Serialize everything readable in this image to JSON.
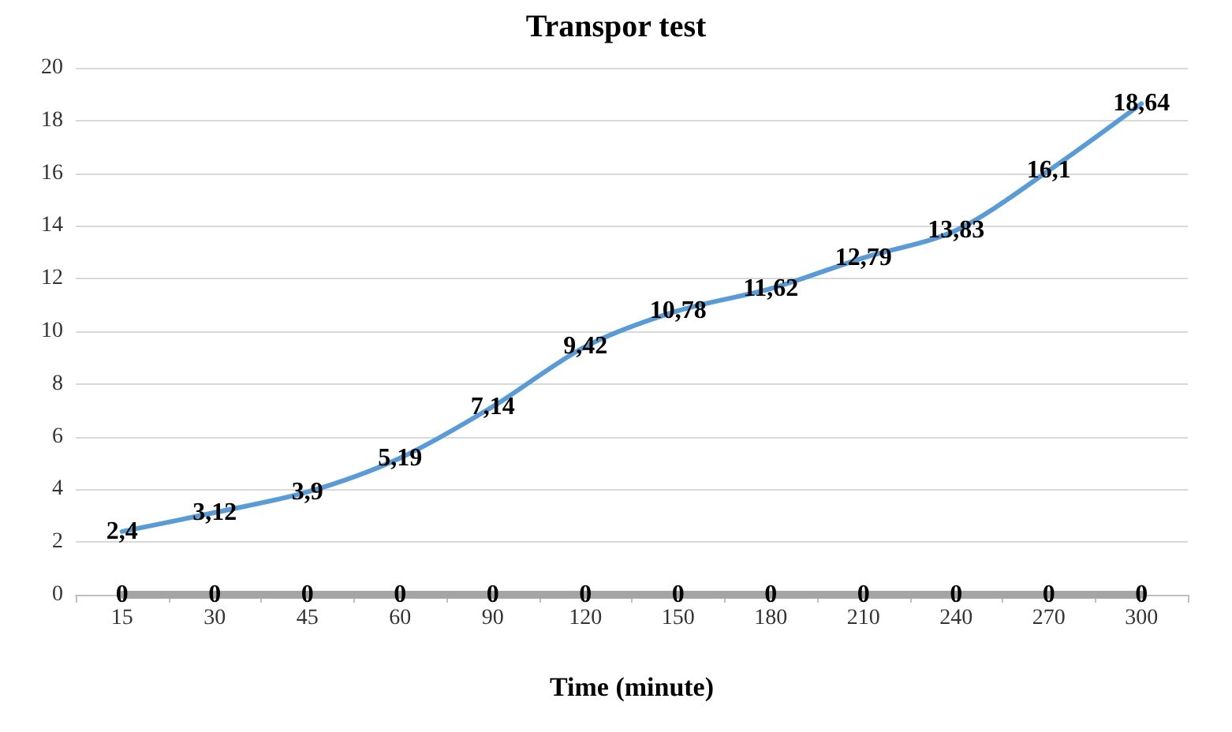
{
  "chart_data": {
    "type": "line",
    "title": "Transpor test",
    "xlabel": "Time (minute)",
    "categories": [
      "15",
      "30",
      "45",
      "60",
      "90",
      "120",
      "150",
      "180",
      "210",
      "240",
      "270",
      "300"
    ],
    "series": [
      {
        "color": "#5b9bd5",
        "values": [
          2.4,
          3.12,
          3.9,
          5.19,
          7.14,
          9.42,
          10.78,
          11.62,
          12.79,
          13.83,
          16.1,
          18.64
        ],
        "value_labels": [
          "2,4",
          "3,12",
          "3,9",
          "5,19",
          "7,14",
          "9,42",
          "10,78",
          "11,62",
          "12,79",
          "13,83",
          "16,1",
          "18,64"
        ]
      },
      {
        "color": "#a5a5a5",
        "values": [
          0,
          0,
          0,
          0,
          0,
          0,
          0,
          0,
          0,
          0,
          0,
          0
        ],
        "value_labels": [
          "0",
          "0",
          "0",
          "0",
          "0",
          "0",
          "0",
          "0",
          "0",
          "0",
          "0",
          "0"
        ]
      }
    ],
    "ylim": [
      0,
      20
    ],
    "yticks": [
      0,
      2,
      4,
      6,
      8,
      10,
      12,
      14,
      16,
      18,
      20
    ],
    "grid": "y",
    "marker": "none",
    "line_style": "solid"
  }
}
